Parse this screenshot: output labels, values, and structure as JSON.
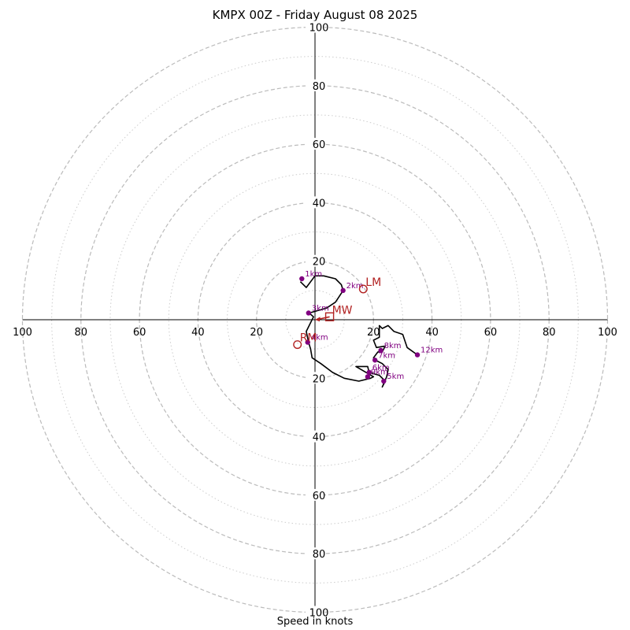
{
  "chart_data": {
    "type": "scatter",
    "title": "KMPX 00Z - Friday August 08 2025",
    "xlabel": "Speed in knots",
    "xlim": [
      -100,
      100
    ],
    "ylim": [
      -100,
      100
    ],
    "grid": "dashed rings every 20, dotted rings every 10",
    "ring_labels": [
      "20",
      "40",
      "60",
      "80",
      "100"
    ],
    "hodograph": [
      [
        -5,
        13
      ],
      [
        -3,
        11
      ],
      [
        0,
        15
      ],
      [
        3,
        15
      ],
      [
        7,
        14
      ],
      [
        9,
        12
      ],
      [
        9.6,
        10
      ],
      [
        7,
        6
      ],
      [
        4,
        4
      ],
      [
        -2,
        2.3
      ],
      [
        -0.5,
        1
      ],
      [
        -3,
        -4
      ],
      [
        -2.2,
        -7.7
      ],
      [
        -1.5,
        -10
      ],
      [
        -1,
        -13
      ],
      [
        2,
        -15
      ],
      [
        6,
        -18
      ],
      [
        10,
        -20
      ],
      [
        15,
        -21
      ],
      [
        19,
        -20
      ],
      [
        20,
        -19.5
      ],
      [
        14,
        -16
      ],
      [
        18,
        -16
      ],
      [
        18.5,
        -18
      ],
      [
        22,
        -19
      ],
      [
        24,
        -21
      ],
      [
        23,
        -23
      ],
      [
        24.5,
        -19.5
      ],
      [
        25,
        -17
      ],
      [
        23,
        -15
      ],
      [
        21,
        -14
      ],
      [
        20,
        -13
      ],
      [
        21.5,
        -11
      ],
      [
        23,
        -11
      ],
      [
        24,
        -9
      ],
      [
        21,
        -9.5
      ],
      [
        20,
        -7
      ],
      [
        22,
        -6
      ],
      [
        22,
        -2
      ],
      [
        23,
        -3
      ],
      [
        25,
        -2
      ],
      [
        27,
        -4
      ],
      [
        30,
        -5
      ],
      [
        31.5,
        -9.5
      ],
      [
        35,
        -12
      ]
    ],
    "height_markers": [
      {
        "label": "1km",
        "u": -4.5,
        "v": 14
      },
      {
        "label": "2km",
        "u": 9.6,
        "v": 10
      },
      {
        "label": "3km",
        "u": -2.2,
        "v": 2.3
      },
      {
        "label": "4km",
        "u": -2.5,
        "v": -7.7
      },
      {
        "label": "5km",
        "u": 23.5,
        "v": -21
      },
      {
        "label": "6km",
        "u": 18.5,
        "v": -18
      },
      {
        "label": "7km",
        "u": 20.5,
        "v": -13.8
      },
      {
        "label": "8km",
        "u": 22.5,
        "v": -10.5
      },
      {
        "label": "9km",
        "u": 18,
        "v": -19.5
      },
      {
        "label": "12km",
        "u": 35,
        "v": -12
      }
    ],
    "motion_markers": [
      {
        "label": "LM",
        "u": 16.5,
        "v": 10.5,
        "shape": "circle"
      },
      {
        "label": "MW",
        "u": 5,
        "v": 1,
        "shape": "square"
      },
      {
        "label": "RM",
        "u": -6,
        "v": -8.5,
        "shape": "circle"
      }
    ],
    "colors": {
      "trace": "#000000",
      "height_marker": "#800080",
      "motion_marker": "#b22222",
      "grid": "#bbbbbb"
    }
  }
}
